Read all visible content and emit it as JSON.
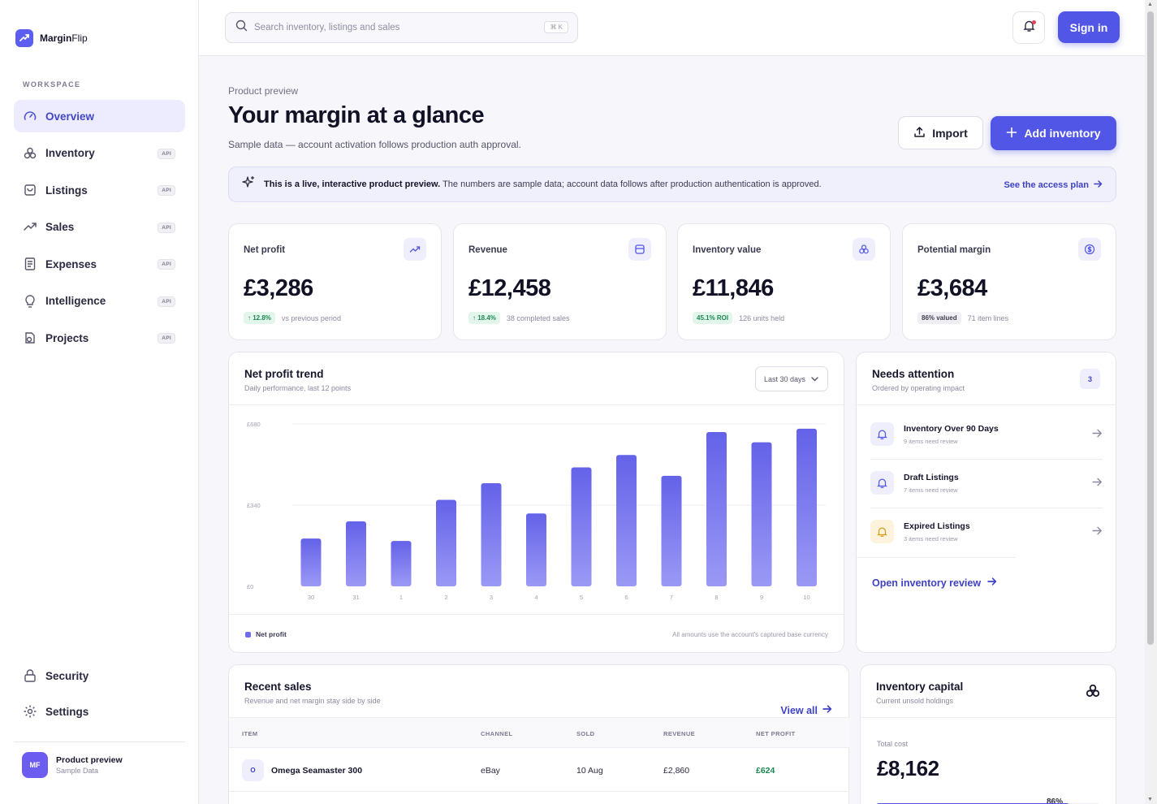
{
  "app": {
    "brand_bold": "Margin",
    "brand_rest": "Flip"
  },
  "sidebar": {
    "section_label": "WORKSPACE",
    "items": [
      {
        "label": "Overview",
        "icon": "gauge-icon",
        "active": true,
        "badge": ""
      },
      {
        "label": "Inventory",
        "icon": "boxes-icon",
        "badge": "API"
      },
      {
        "label": "Listings",
        "icon": "bag-icon",
        "badge": "API"
      },
      {
        "label": "Sales",
        "icon": "trend-up-icon",
        "badge": "API"
      },
      {
        "label": "Expenses",
        "icon": "receipt-icon",
        "badge": "API"
      },
      {
        "label": "Intelligence",
        "icon": "lightbulb-icon",
        "badge": "API"
      },
      {
        "label": "Projects",
        "icon": "projects-icon",
        "badge": "API"
      }
    ],
    "bottom_items": [
      {
        "label": "Security",
        "icon": "lock-icon"
      },
      {
        "label": "Settings",
        "icon": "gear-icon"
      }
    ],
    "profile": {
      "initials": "MF",
      "name": "Product preview",
      "sub": "Sample Data"
    }
  },
  "topbar": {
    "search_placeholder": "Search inventory, listings and sales",
    "shortcut": "⌘ K",
    "signin_label": "Sign in"
  },
  "header": {
    "crumb": "Product preview",
    "title": "Your margin at a glance",
    "subtitle": "Sample data — account activation follows production auth approval.",
    "import_label": "Import",
    "add_label": "Add inventory"
  },
  "banner": {
    "bold": "This is a live, interactive product preview.",
    "text": " The numbers are sample data; account data follows after production authentication is approved.",
    "link": "See the access plan"
  },
  "kpis": [
    {
      "label": "Net profit",
      "value": "£3,286",
      "pill": "↑ 12.8%",
      "pill_style": "green",
      "note": "vs previous period",
      "icon": "trend-up-icon"
    },
    {
      "label": "Revenue",
      "value": "£12,458",
      "pill": "↑ 18.4%",
      "pill_style": "green",
      "note": "38 completed sales",
      "icon": "wallet-icon"
    },
    {
      "label": "Inventory value",
      "value": "£11,846",
      "pill": "45.1% ROI",
      "pill_style": "green",
      "note": "126 units held",
      "icon": "boxes-icon"
    },
    {
      "label": "Potential margin",
      "value": "£3,684",
      "pill": "86% valued",
      "pill_style": "gray",
      "note": "71 item lines",
      "icon": "dollar-circle-icon"
    }
  ],
  "trend": {
    "title": "Net profit trend",
    "subtitle": "Daily performance, last 12 points",
    "range": "Last 30 days",
    "legend": "Net profit",
    "footnote": "All amounts use the account's captured base currency"
  },
  "chart_data": {
    "type": "bar",
    "categories": [
      "30",
      "31",
      "1",
      "2",
      "3",
      "4",
      "5",
      "6",
      "7",
      "8",
      "9",
      "10"
    ],
    "series": [
      {
        "name": "Net profit",
        "values": [
          200,
          272,
          190,
          362,
          432,
          305,
          498,
          550,
          463,
          646,
          603,
          660
        ]
      }
    ],
    "y_ticks": [
      "£680",
      "£340",
      "£0"
    ],
    "ylim": [
      0,
      680
    ],
    "grid": true,
    "legend_position": "bottom-left",
    "color": "#6d6cf0"
  },
  "attention": {
    "title": "Needs attention",
    "subtitle": "Ordered by operating impact",
    "count": "3",
    "items": [
      {
        "title": "Inventory Over 90 Days",
        "sub": "9 items need review",
        "tone": "#eeeefc",
        "icon_color": "#5256e6"
      },
      {
        "title": "Draft Listings",
        "sub": "7 items need review",
        "tone": "#eeeefc",
        "icon_color": "#5256e6"
      },
      {
        "title": "Expired Listings",
        "sub": "3 items need review",
        "tone": "#fdf3dc",
        "icon_color": "#d99a16"
      }
    ],
    "link": "Open inventory review"
  },
  "sales": {
    "title": "Recent sales",
    "subtitle": "Revenue and net margin stay side by side",
    "view_all": "View all",
    "columns": [
      "ITEM",
      "CHANNEL",
      "SOLD",
      "REVENUE",
      "NET PROFIT"
    ],
    "rows": [
      {
        "badge": "O",
        "item": "Omega Seamaster 300",
        "channel": "eBay",
        "sold": "10 Aug",
        "revenue": "£2,860",
        "profit": "£624"
      }
    ]
  },
  "capital": {
    "title": "Inventory capital",
    "subtitle": "Current unsold holdings",
    "total_label": "Total cost",
    "total_value": "£8,162",
    "pct": "86%",
    "pct_value": 0.86
  }
}
